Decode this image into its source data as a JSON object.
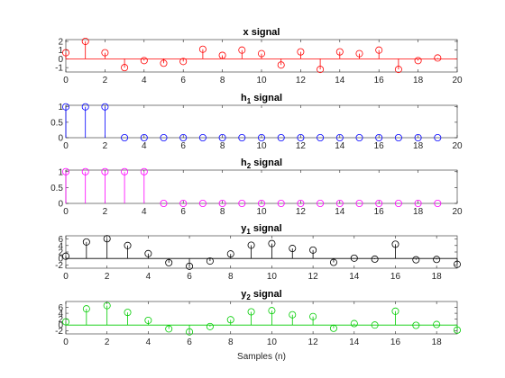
{
  "figure": {
    "xlabel": "Samples (n)"
  },
  "chart_data": [
    {
      "type": "stem",
      "title": "x signal",
      "title_main": "x",
      "title_sub": "",
      "title_rest": " signal",
      "color": "#ff0000",
      "xlim": [
        0,
        20
      ],
      "ylim": [
        -1.5,
        2.2
      ],
      "xticks": [
        0,
        2,
        4,
        6,
        8,
        10,
        12,
        14,
        16,
        18,
        20
      ],
      "yticks": [
        -1,
        0,
        1,
        2
      ],
      "baseline": true,
      "x": [
        0,
        1,
        2,
        3,
        4,
        5,
        6,
        7,
        8,
        9,
        10,
        11,
        12,
        13,
        14,
        15,
        16,
        17,
        18,
        19
      ],
      "y": [
        0.7,
        2.0,
        0.7,
        -1.0,
        -0.2,
        -0.5,
        -0.3,
        1.1,
        0.4,
        1.0,
        0.6,
        -0.7,
        0.8,
        -1.2,
        0.8,
        0.6,
        1.0,
        -1.2,
        -0.2,
        0.1
      ]
    },
    {
      "type": "stem",
      "title": "h1 signal",
      "title_main": "h",
      "title_sub": "1",
      "title_rest": "  signal",
      "color": "#0000ff",
      "xlim": [
        0,
        20
      ],
      "ylim": [
        0,
        1.05
      ],
      "xticks": [
        0,
        2,
        4,
        6,
        8,
        10,
        12,
        14,
        16,
        18,
        20
      ],
      "yticks": [
        0,
        0.5,
        1
      ],
      "baseline": false,
      "x": [
        0,
        1,
        2,
        3,
        4,
        5,
        6,
        7,
        8,
        9,
        10,
        11,
        12,
        13,
        14,
        15,
        16,
        17,
        18,
        19
      ],
      "y": [
        1,
        1,
        1,
        0,
        0,
        0,
        0,
        0,
        0,
        0,
        0,
        0,
        0,
        0,
        0,
        0,
        0,
        0,
        0,
        0
      ]
    },
    {
      "type": "stem",
      "title": "h2 signal",
      "title_main": "h",
      "title_sub": "2",
      "title_rest": "  signal",
      "color": "#ff00ff",
      "xlim": [
        0,
        20
      ],
      "ylim": [
        0,
        1.05
      ],
      "xticks": [
        0,
        2,
        4,
        6,
        8,
        10,
        12,
        14,
        16,
        18,
        20
      ],
      "yticks": [
        0,
        0.5,
        1
      ],
      "baseline": false,
      "x": [
        0,
        1,
        2,
        3,
        4,
        5,
        6,
        7,
        8,
        9,
        10,
        11,
        12,
        13,
        14,
        15,
        16,
        17,
        18,
        19
      ],
      "y": [
        1,
        1,
        1,
        1,
        1,
        0,
        0,
        0,
        0,
        0,
        0,
        0,
        0,
        0,
        0,
        0,
        0,
        0,
        0,
        0
      ]
    },
    {
      "type": "stem",
      "title": "y1 signal",
      "title_main": "y",
      "title_sub": "1",
      "title_rest": "  signal",
      "color": "#000000",
      "xlim": [
        0,
        19
      ],
      "ylim": [
        -3,
        7
      ],
      "xticks": [
        0,
        2,
        4,
        6,
        8,
        10,
        12,
        14,
        16,
        18
      ],
      "yticks": [
        -2,
        0,
        2,
        4,
        6
      ],
      "baseline": true,
      "x": [
        0,
        1,
        2,
        3,
        4,
        5,
        6,
        7,
        8,
        9,
        10,
        11,
        12,
        13,
        14,
        15,
        16,
        17,
        18,
        19
      ],
      "y": [
        0.7,
        5.1,
        6.1,
        4.0,
        1.5,
        -1.3,
        -2.4,
        -0.8,
        1.4,
        4.1,
        4.6,
        3.1,
        2.6,
        -1.2,
        0.1,
        -0.2,
        4.4,
        -0.4,
        -0.3,
        -1.8
      ]
    },
    {
      "type": "stem",
      "title": "y2 signal",
      "title_main": "y",
      "title_sub": "2",
      "title_rest": "  signal",
      "color": "#00cc00",
      "xlim": [
        0,
        19
      ],
      "ylim": [
        -3,
        8
      ],
      "xticks": [
        0,
        2,
        4,
        6,
        8,
        10,
        12,
        14,
        16,
        18
      ],
      "yticks": [
        -2,
        0,
        2,
        4,
        6
      ],
      "baseline": true,
      "x": [
        0,
        1,
        2,
        3,
        4,
        5,
        6,
        7,
        8,
        9,
        10,
        11,
        12,
        13,
        14,
        15,
        16,
        17,
        18,
        19
      ],
      "y": [
        1.1,
        5.5,
        6.6,
        4.3,
        1.6,
        -1.3,
        -2.3,
        -0.5,
        1.8,
        4.5,
        4.9,
        3.5,
        2.9,
        -1.1,
        0.5,
        0.0,
        4.7,
        -0.1,
        0.2,
        -1.7
      ]
    }
  ]
}
